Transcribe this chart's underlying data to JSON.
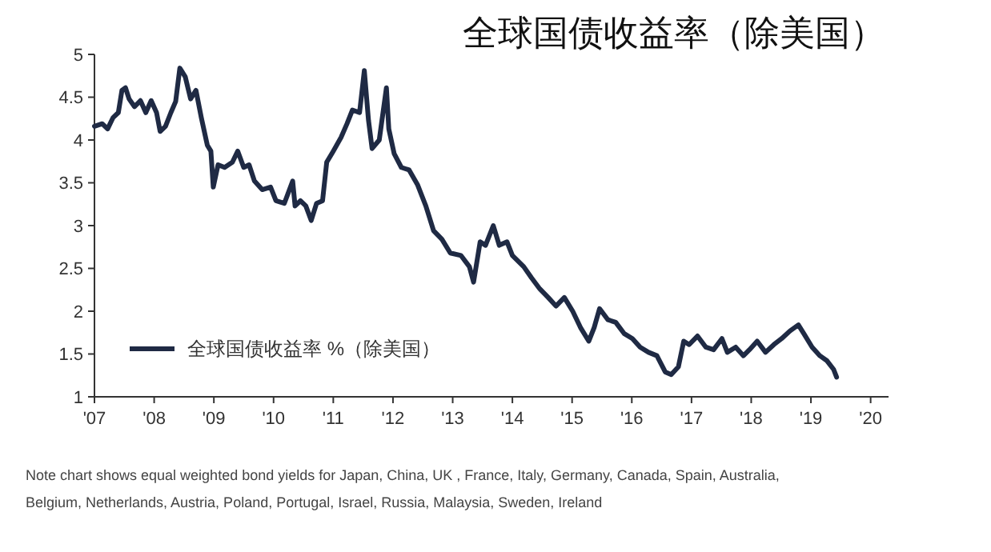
{
  "chart_data": {
    "type": "line",
    "title": "全球国债收益率（除美国）",
    "annotations": [
      "Note chart shows equal weighted bond yields for Japan, China, UK , France, Italy, Germany, Canada, Spain, Australia, Belgium, Netherlands, Austria, Poland, Portugal, Israel, Russia, Malaysia, Sweden, Ireland"
    ],
    "xlim": [
      2007,
      2020.3
    ],
    "xticks": [
      {
        "value": 2007,
        "label": "'07"
      },
      {
        "value": 2008,
        "label": "'08"
      },
      {
        "value": 2009,
        "label": "'09"
      },
      {
        "value": 2010,
        "label": "'10"
      },
      {
        "value": 2011,
        "label": "'11"
      },
      {
        "value": 2012,
        "label": "'12"
      },
      {
        "value": 2013,
        "label": "'13"
      },
      {
        "value": 2014,
        "label": "'14"
      },
      {
        "value": 2015,
        "label": "'15"
      },
      {
        "value": 2016,
        "label": "'16"
      },
      {
        "value": 2017,
        "label": "'17"
      },
      {
        "value": 2018,
        "label": "'18"
      },
      {
        "value": 2019,
        "label": "'19"
      },
      {
        "value": 2020,
        "label": "'20"
      }
    ],
    "ylim": [
      1,
      5
    ],
    "yticks": [
      1,
      1.5,
      2,
      2.5,
      3,
      3.5,
      4,
      4.5,
      5
    ],
    "grid": false,
    "legend": "bottom left",
    "marker": "none",
    "line_style": "solid",
    "series": [
      {
        "name": "全球国债收益率 %（除美国）",
        "color": "#1f2a44",
        "x": [
          2007.0,
          2007.13,
          2007.22,
          2007.31,
          2007.4,
          2007.46,
          2007.52,
          2007.58,
          2007.67,
          2007.77,
          2007.86,
          2007.95,
          2008.04,
          2008.1,
          2008.19,
          2008.28,
          2008.36,
          2008.43,
          2008.52,
          2008.61,
          2008.7,
          2008.79,
          2008.89,
          2008.95,
          2008.99,
          2009.07,
          2009.18,
          2009.31,
          2009.4,
          2009.5,
          2009.59,
          2009.68,
          2009.81,
          2009.95,
          2010.04,
          2010.18,
          2010.32,
          2010.36,
          2010.45,
          2010.54,
          2010.63,
          2010.72,
          2010.82,
          2010.89,
          2011.0,
          2011.13,
          2011.23,
          2011.32,
          2011.44,
          2011.52,
          2011.59,
          2011.65,
          2011.77,
          2011.89,
          2011.93,
          2012.02,
          2012.14,
          2012.27,
          2012.41,
          2012.55,
          2012.68,
          2012.82,
          2012.96,
          2013.14,
          2013.28,
          2013.35,
          2013.46,
          2013.55,
          2013.68,
          2013.78,
          2013.91,
          2014.0,
          2014.19,
          2014.32,
          2014.46,
          2014.6,
          2014.73,
          2014.87,
          2015.01,
          2015.14,
          2015.28,
          2015.37,
          2015.46,
          2015.6,
          2015.73,
          2015.87,
          2016.01,
          2016.14,
          2016.28,
          2016.42,
          2016.56,
          2016.66,
          2016.78,
          2016.87,
          2016.96,
          2017.1,
          2017.24,
          2017.37,
          2017.51,
          2017.6,
          2017.74,
          2017.87,
          2017.97,
          2018.1,
          2018.24,
          2018.38,
          2018.51,
          2018.65,
          2018.79,
          2018.88,
          2019.02,
          2019.15,
          2019.27,
          2019.38,
          2019.43
        ],
        "values": [
          4.16,
          4.19,
          4.13,
          4.26,
          4.32,
          4.58,
          4.61,
          4.48,
          4.39,
          4.46,
          4.32,
          4.46,
          4.32,
          4.1,
          4.16,
          4.32,
          4.45,
          4.84,
          4.74,
          4.48,
          4.58,
          4.26,
          3.94,
          3.87,
          3.45,
          3.71,
          3.68,
          3.74,
          3.87,
          3.68,
          3.71,
          3.52,
          3.42,
          3.45,
          3.29,
          3.26,
          3.52,
          3.23,
          3.29,
          3.23,
          3.06,
          3.26,
          3.29,
          3.74,
          3.87,
          4.03,
          4.19,
          4.35,
          4.32,
          4.81,
          4.23,
          3.9,
          4.0,
          4.61,
          4.13,
          3.84,
          3.68,
          3.65,
          3.48,
          3.23,
          2.94,
          2.84,
          2.68,
          2.65,
          2.52,
          2.34,
          2.81,
          2.77,
          3.0,
          2.77,
          2.81,
          2.65,
          2.52,
          2.39,
          2.26,
          2.16,
          2.06,
          2.16,
          2.0,
          1.81,
          1.65,
          1.81,
          2.03,
          1.9,
          1.87,
          1.74,
          1.68,
          1.58,
          1.52,
          1.48,
          1.29,
          1.26,
          1.35,
          1.65,
          1.61,
          1.71,
          1.58,
          1.55,
          1.68,
          1.52,
          1.58,
          1.48,
          1.55,
          1.65,
          1.52,
          1.61,
          1.68,
          1.77,
          1.84,
          1.74,
          1.58,
          1.48,
          1.42,
          1.32,
          1.23
        ]
      }
    ]
  }
}
